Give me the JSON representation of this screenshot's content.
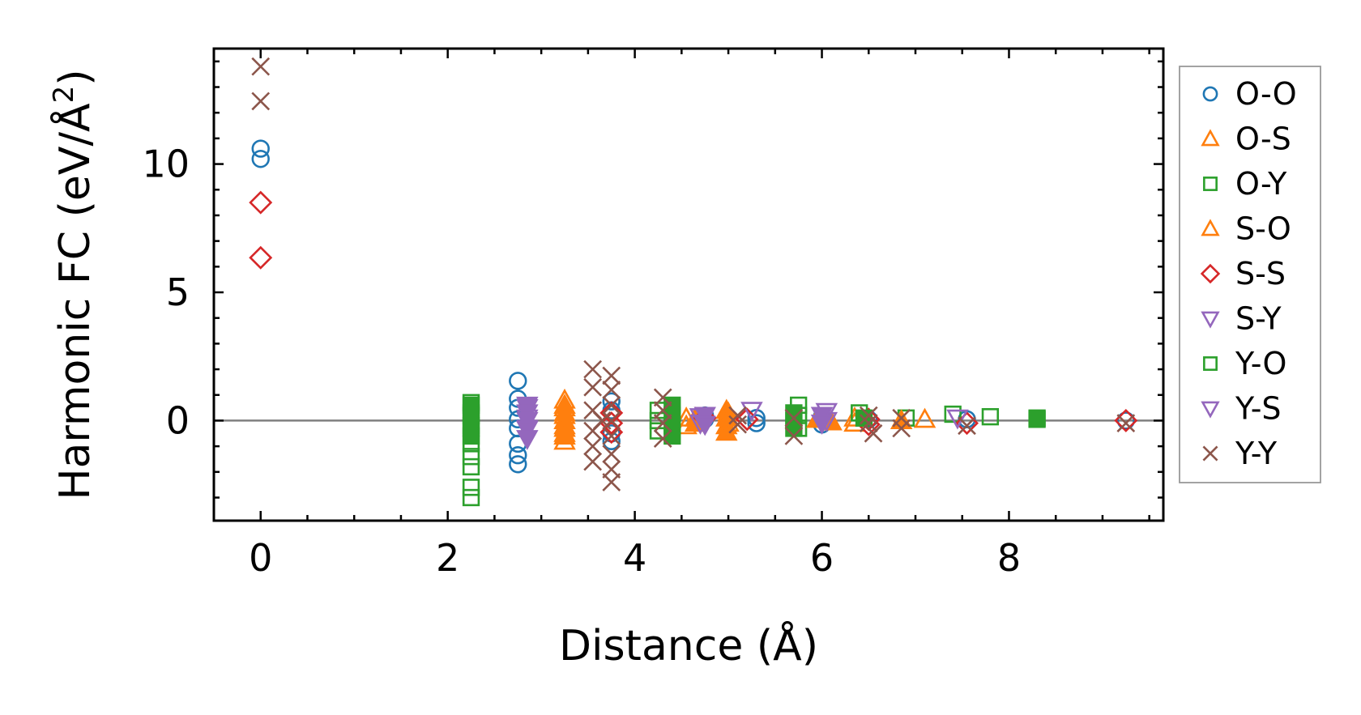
{
  "chart_data": {
    "type": "scatter",
    "title": "",
    "xlabel": "Distance (Å)",
    "ylabel": "Harmonic FC (eV/Å²)",
    "ylabel_parts": {
      "main": "Harmonic FC (eV/Å",
      "sup": "2",
      "end": ")"
    },
    "xlim": [
      -0.5,
      9.65
    ],
    "ylim": [
      -3.9,
      14.5
    ],
    "xticks": [
      0,
      2,
      4,
      6,
      8
    ],
    "xtick_labels": [
      "0",
      "2",
      "4",
      "6",
      "8"
    ],
    "yticks": [
      0,
      5,
      10
    ],
    "ytick_labels": [
      "0",
      "5",
      "10"
    ],
    "grid": false,
    "zero_line": true,
    "legend_position": "right",
    "series": [
      {
        "name": "O-O",
        "marker": "circle",
        "filled": false,
        "color": "#1f77b4",
        "points": [
          [
            0,
            10.6
          ],
          [
            0,
            10.2
          ],
          [
            2.75,
            1.55
          ],
          [
            2.75,
            0.85
          ],
          [
            2.75,
            0.5
          ],
          [
            2.75,
            0.05
          ],
          [
            2.75,
            -0.3
          ],
          [
            2.75,
            -0.9
          ],
          [
            2.75,
            -1.35
          ],
          [
            2.75,
            -1.7
          ],
          [
            3.75,
            0.75
          ],
          [
            3.75,
            0.4
          ],
          [
            3.75,
            -0.5
          ],
          [
            3.75,
            -0.8
          ],
          [
            4.75,
            0.2
          ],
          [
            4.75,
            0.05
          ],
          [
            5.3,
            0.1
          ],
          [
            5.3,
            -0.1
          ],
          [
            6.0,
            0.15
          ],
          [
            6.0,
            -0.15
          ],
          [
            6.5,
            0.05
          ],
          [
            7.55,
            0.05
          ],
          [
            9.25,
            0
          ]
        ]
      },
      {
        "name": "O-S",
        "marker": "triangle-up",
        "filled": false,
        "color": "#ff7f0e",
        "points": [
          [
            3.25,
            0.8
          ],
          [
            3.25,
            0.5
          ],
          [
            3.25,
            0.2
          ],
          [
            3.25,
            -0.2
          ],
          [
            3.25,
            -0.5
          ],
          [
            3.25,
            -0.8
          ],
          [
            4.55,
            0.1
          ],
          [
            4.55,
            -0.2
          ],
          [
            5.0,
            0.3
          ],
          [
            5.0,
            -0.1
          ],
          [
            6.35,
            0.1
          ],
          [
            6.35,
            -0.1
          ],
          [
            7.1,
            0.05
          ]
        ]
      },
      {
        "name": "O-Y",
        "marker": "square",
        "filled": false,
        "color": "#2ca02c",
        "points": [
          [
            2.25,
            0.7
          ],
          [
            2.25,
            0.3
          ],
          [
            2.25,
            -0.3
          ],
          [
            2.25,
            -0.9
          ],
          [
            2.25,
            -1.4
          ],
          [
            2.25,
            -1.8
          ],
          [
            2.25,
            -2.6
          ],
          [
            2.25,
            -3.0
          ],
          [
            4.25,
            0.4
          ],
          [
            4.25,
            0.0
          ],
          [
            4.25,
            -0.4
          ],
          [
            5.75,
            0.6
          ],
          [
            5.75,
            0.2
          ],
          [
            5.75,
            -0.3
          ],
          [
            6.4,
            0.3
          ],
          [
            6.9,
            0.1
          ],
          [
            7.4,
            0.25
          ],
          [
            7.8,
            0.15
          ],
          [
            8.3,
            0.1
          ]
        ]
      },
      {
        "name": "S-O",
        "marker": "triangle-up",
        "filled": true,
        "color": "#ff7f0e",
        "points": [
          [
            3.25,
            0.6
          ],
          [
            3.25,
            0.3
          ],
          [
            3.25,
            0.0
          ],
          [
            3.25,
            -0.3
          ],
          [
            3.25,
            -0.6
          ],
          [
            4.65,
            0.1
          ],
          [
            4.65,
            -0.1
          ],
          [
            4.98,
            0.4
          ],
          [
            4.98,
            0.1
          ],
          [
            4.98,
            -0.2
          ],
          [
            4.98,
            -0.45
          ],
          [
            5.95,
            0.05
          ],
          [
            6.1,
            -0.05
          ],
          [
            6.85,
            0.0
          ]
        ]
      },
      {
        "name": "S-S",
        "marker": "diamond",
        "filled": false,
        "color": "#d62728",
        "points": [
          [
            0,
            8.5
          ],
          [
            0,
            6.35
          ],
          [
            3.75,
            0.3
          ],
          [
            3.75,
            -0.1
          ],
          [
            3.75,
            -0.45
          ],
          [
            4.75,
            0.1
          ],
          [
            5.2,
            0.05
          ],
          [
            6.5,
            0.05
          ],
          [
            6.5,
            -0.15
          ],
          [
            7.55,
            -0.1
          ],
          [
            9.25,
            0
          ]
        ]
      },
      {
        "name": "S-Y",
        "marker": "triangle-down",
        "filled": false,
        "color": "#9467bd",
        "points": [
          [
            2.85,
            0.5
          ],
          [
            2.85,
            0.1
          ],
          [
            2.85,
            -0.3
          ],
          [
            4.7,
            0.15
          ],
          [
            4.7,
            -0.1
          ],
          [
            5.25,
            0.4
          ],
          [
            6.05,
            0.35
          ],
          [
            6.05,
            0.0
          ],
          [
            7.45,
            0.1
          ]
        ]
      },
      {
        "name": "Y-O",
        "marker": "square",
        "filled": true,
        "color": "#2ca02c",
        "points": [
          [
            2.25,
            0.6
          ],
          [
            2.25,
            0.2
          ],
          [
            2.25,
            -0.2
          ],
          [
            2.25,
            -0.6
          ],
          [
            4.4,
            0.6
          ],
          [
            4.4,
            0.2
          ],
          [
            4.4,
            -0.2
          ],
          [
            4.4,
            -0.6
          ],
          [
            5.7,
            0.3
          ],
          [
            5.7,
            0.0
          ],
          [
            5.7,
            -0.3
          ],
          [
            6.45,
            0.1
          ],
          [
            8.3,
            0.05
          ]
        ]
      },
      {
        "name": "Y-S",
        "marker": "triangle-down",
        "filled": true,
        "color": "#9467bd",
        "points": [
          [
            2.85,
            0.6
          ],
          [
            2.85,
            0.3
          ],
          [
            2.85,
            0.0
          ],
          [
            2.85,
            -0.35
          ],
          [
            2.85,
            -0.7
          ],
          [
            4.75,
            0.2
          ],
          [
            4.75,
            -0.15
          ],
          [
            6.0,
            0.2
          ],
          [
            6.0,
            -0.1
          ]
        ]
      },
      {
        "name": "Y-Y",
        "marker": "x",
        "filled": false,
        "color": "#8c564b",
        "points": [
          [
            0,
            13.8
          ],
          [
            0,
            12.45
          ],
          [
            3.55,
            2.0
          ],
          [
            3.55,
            1.3
          ],
          [
            3.55,
            0.4
          ],
          [
            3.55,
            -0.4
          ],
          [
            3.55,
            -1.0
          ],
          [
            3.55,
            -1.6
          ],
          [
            3.75,
            1.75
          ],
          [
            3.75,
            1.2
          ],
          [
            3.75,
            0.6
          ],
          [
            3.75,
            0.0
          ],
          [
            3.75,
            -0.6
          ],
          [
            3.75,
            -1.3
          ],
          [
            3.75,
            -1.9
          ],
          [
            3.75,
            -2.4
          ],
          [
            3.65,
            0.0
          ],
          [
            4.3,
            0.9
          ],
          [
            4.3,
            0.4
          ],
          [
            4.3,
            -0.1
          ],
          [
            4.3,
            -0.7
          ],
          [
            5.1,
            0.2
          ],
          [
            5.1,
            -0.15
          ],
          [
            5.7,
            0.1
          ],
          [
            5.7,
            -0.6
          ],
          [
            6.5,
            0.2
          ],
          [
            6.5,
            -0.1
          ],
          [
            6.55,
            -0.5
          ],
          [
            6.85,
            0.1
          ],
          [
            6.85,
            -0.3
          ],
          [
            7.55,
            -0.2
          ],
          [
            9.25,
            -0.1
          ]
        ]
      }
    ]
  }
}
